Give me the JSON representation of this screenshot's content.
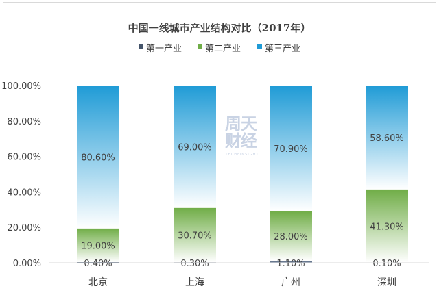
{
  "chart_data": {
    "type": "bar",
    "stacked": true,
    "title": "中国一线城市产业结构对比（2017年）",
    "categories": [
      "北京",
      "上海",
      "广州",
      "深圳"
    ],
    "series": [
      {
        "name": "第一产业",
        "color": "#44546a",
        "values": [
          0.4,
          0.3,
          1.1,
          0.1
        ],
        "labels": [
          "0.40%",
          "0.30%",
          "1.10%",
          "0.10%"
        ]
      },
      {
        "name": "第二产业",
        "color": "#70ad47",
        "values": [
          19.0,
          30.7,
          28.0,
          41.3
        ],
        "labels": [
          "19.00%",
          "30.70%",
          "28.00%",
          "41.30%"
        ]
      },
      {
        "name": "第三产业",
        "color": "#1f9bd6",
        "values": [
          80.6,
          69.0,
          70.9,
          58.6
        ],
        "labels": [
          "80.60%",
          "69.00%",
          "70.90%",
          "58.60%"
        ]
      }
    ],
    "y_ticks": [
      0,
      20,
      40,
      60,
      80,
      100
    ],
    "y_tick_labels": [
      "0.00%",
      "20.00%",
      "40.00%",
      "60.00%",
      "80.00%",
      "100.00%"
    ],
    "ylim": [
      0,
      100
    ],
    "xlabel": "",
    "ylabel": "",
    "legend_position": "top-center",
    "grid": false
  },
  "watermark": {
    "top": "周天",
    "bottom": "财经",
    "sub": "TECHFINSIGHT"
  }
}
